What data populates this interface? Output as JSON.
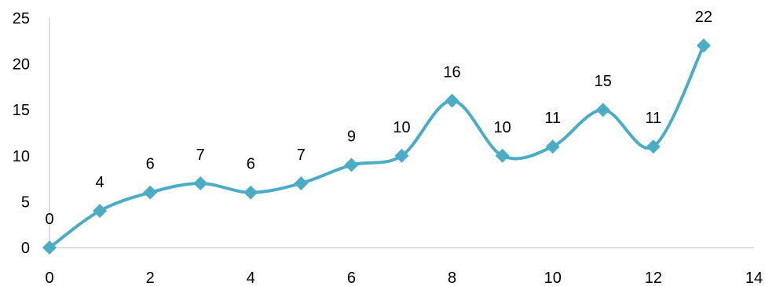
{
  "chart_data": {
    "type": "line",
    "title": "",
    "xlabel": "",
    "ylabel": "",
    "xlim": [
      0,
      14
    ],
    "ylim": [
      0,
      25
    ],
    "x_ticks": [
      0,
      2,
      4,
      6,
      8,
      10,
      12,
      14
    ],
    "y_ticks": [
      0,
      5,
      10,
      15,
      20,
      25
    ],
    "grid": false,
    "legend": "none",
    "smooth": true,
    "marker": "diamond",
    "series_color": "#4bacc6",
    "series": [
      {
        "x": [
          0,
          1,
          2,
          3,
          4,
          5,
          6,
          7,
          8,
          9,
          10,
          11,
          12,
          13
        ],
        "values": [
          0,
          4,
          6,
          7,
          6,
          7,
          9,
          10,
          16,
          10,
          11,
          15,
          11,
          22
        ],
        "labels": [
          "0",
          "4",
          "6",
          "7",
          "6",
          "7",
          "9",
          "10",
          "16",
          "10",
          "11",
          "15",
          "11",
          "22"
        ]
      }
    ]
  }
}
